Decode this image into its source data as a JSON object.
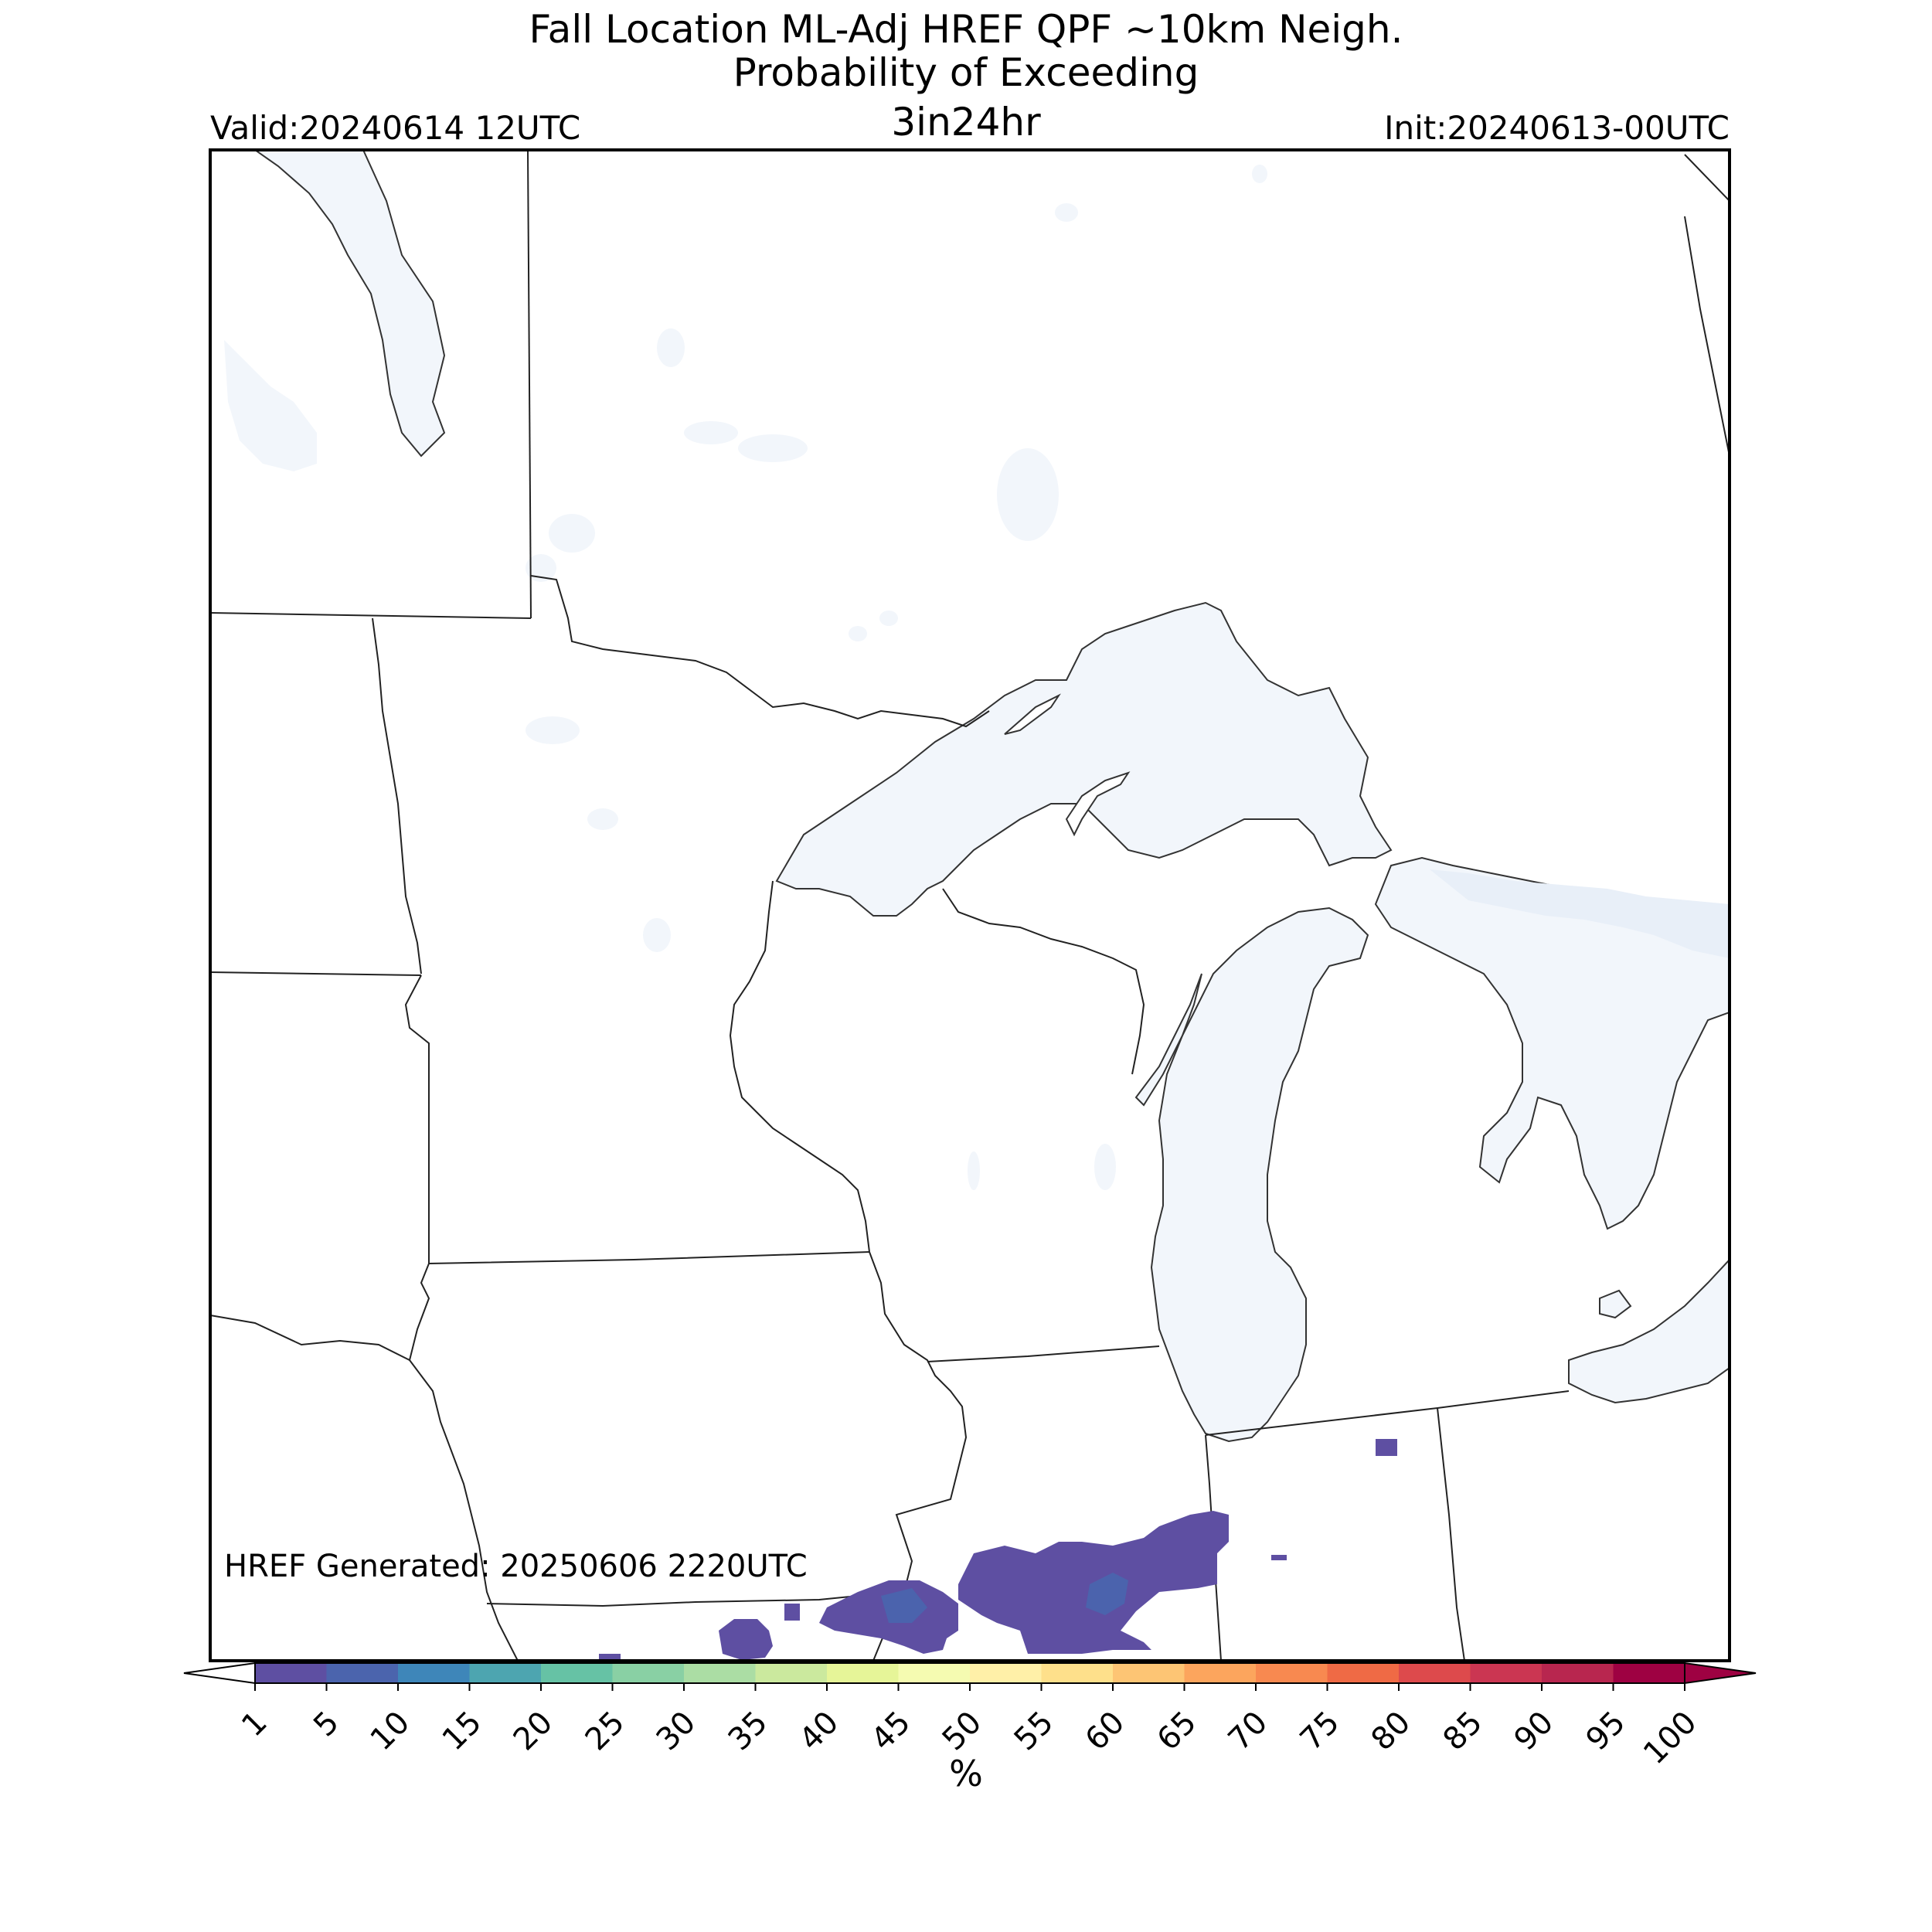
{
  "header": {
    "title_line1": "Fall Location ML-Adj HREF QPF ~10km Neigh.",
    "title_line2": "Probability of Exceeding",
    "title_line3": "3in24hr",
    "valid": "Valid:20240614 12UTC",
    "init": "Init:20240613-00UTC"
  },
  "map": {
    "generated_text": "HREF Generated: 20250606 2220UTC",
    "water_color": "#f2f6fb",
    "border_color": "#222222",
    "probability_color_low": "#5e4fa2",
    "probability_color_mid": "#4b63ad"
  },
  "colorbar": {
    "ticks": [
      "1",
      "5",
      "10",
      "15",
      "20",
      "25",
      "30",
      "35",
      "40",
      "45",
      "50",
      "55",
      "60",
      "65",
      "70",
      "75",
      "80",
      "85",
      "90",
      "95",
      "100"
    ],
    "colors": [
      "#5e4fa2",
      "#4b64ad",
      "#3e86b9",
      "#4da5b0",
      "#66c2a5",
      "#89d0a4",
      "#abdda4",
      "#cbe99e",
      "#e6f598",
      "#f5fbb1",
      "#fff0a8",
      "#fee08b",
      "#fdc574",
      "#fca55d",
      "#f88950",
      "#ef6a45",
      "#dd4a4c",
      "#cb3652",
      "#b8264f",
      "#9e0142"
    ],
    "unit": "%"
  }
}
